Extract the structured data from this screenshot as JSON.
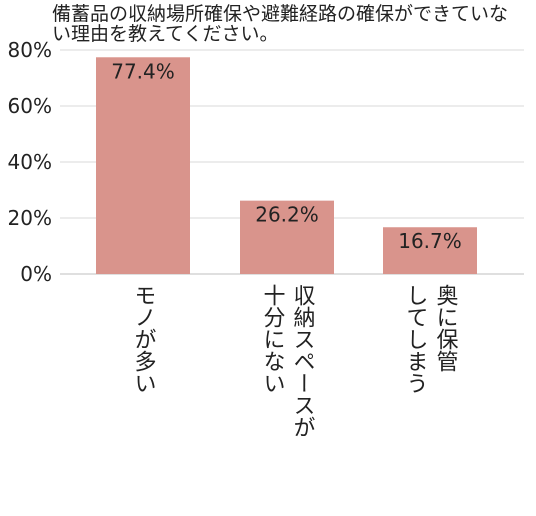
{
  "chart_data": {
    "type": "bar",
    "title": "備蓄品の収納場所確保や避難経路の確保ができていない理由を教えてください。",
    "categories": [
      [
        "モノが多い"
      ],
      [
        "収納スペースが",
        "十分にない"
      ],
      [
        "奥に保管",
        "してしまう"
      ]
    ],
    "values": [
      77.4,
      26.2,
      16.7
    ],
    "value_labels": [
      "77.4%",
      "26.2%",
      "16.7%"
    ],
    "y_ticks": [
      0,
      20,
      40,
      60,
      80
    ],
    "y_tick_labels": [
      "0%",
      "20%",
      "40%",
      "60%",
      "80%"
    ],
    "ylim": [
      0,
      80
    ],
    "grid": true,
    "colors": {
      "bar": "#d9948c",
      "grid": "#d9d9d9",
      "axis": "#bfbfbf"
    }
  }
}
